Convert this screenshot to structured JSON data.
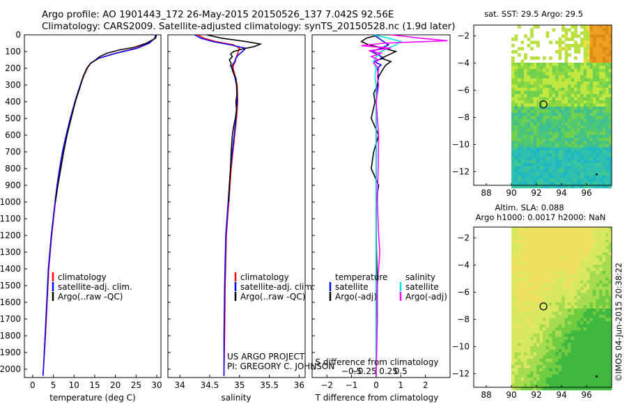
{
  "header": {
    "title_line1": "Argo profile: AO 1901443_172 26-May-2015 20150526_137 7.042S 92.56E",
    "title_line2": "Climatology: CARS2009. Satellite-adjusted climatology: synTS_20150528.nc (1.9d later)"
  },
  "colors": {
    "climatology": "#ff0000",
    "satellite": "#0000ff",
    "argo": "#000000",
    "satellite_sal": "#00e0e0",
    "argo_sal": "#ff00ff"
  },
  "chart_data": [
    {
      "id": "temperature",
      "type": "line",
      "xlabel": "temperature (deg C)",
      "xlim": [
        -2,
        31
      ],
      "xticks": [
        0,
        5,
        10,
        15,
        20,
        25,
        30
      ],
      "ylabel": "depth",
      "ylim": [
        0,
        2050
      ],
      "yticks": [
        0,
        100,
        200,
        300,
        400,
        500,
        600,
        700,
        800,
        900,
        1000,
        1100,
        1200,
        1300,
        1400,
        1500,
        1600,
        1700,
        1800,
        1900,
        2000
      ],
      "legend": [
        "climatology",
        "satellite-adj. clim.",
        "Argo(..raw -QC)"
      ],
      "series": [
        {
          "name": "climatology",
          "color": "#ff0000",
          "depth": [
            0,
            20,
            50,
            80,
            110,
            140,
            170,
            200,
            250,
            300,
            400,
            500,
            600,
            700,
            800,
            900,
            1000,
            1200,
            1400,
            1600,
            1800,
            2000,
            2040
          ],
          "values": [
            29.8,
            29.6,
            28,
            25,
            20,
            16,
            14,
            13.2,
            12.3,
            11.6,
            10.3,
            9.2,
            8.2,
            7.3,
            6.6,
            6,
            5.5,
            4.6,
            3.9,
            3.5,
            3.1,
            2.6,
            2.5
          ]
        },
        {
          "name": "satellite-adj. clim.",
          "color": "#0000ff",
          "depth": [
            0,
            20,
            50,
            80,
            110,
            140,
            170,
            200,
            250,
            300,
            400,
            500,
            600,
            700,
            800,
            900,
            1000,
            1200,
            1400,
            1600,
            1800,
            2000,
            2040
          ],
          "values": [
            29.7,
            29.5,
            28.2,
            25.3,
            20.2,
            16,
            14,
            13.1,
            12.2,
            11.5,
            10.2,
            9.1,
            8.1,
            7.2,
            6.5,
            5.9,
            5.4,
            4.5,
            3.8,
            3.4,
            3,
            2.6,
            2.5
          ]
        },
        {
          "name": "Argo(..raw -QC)",
          "color": "#000000",
          "depth": [
            0,
            20,
            50,
            75,
            90,
            110,
            130,
            150,
            170,
            200,
            250,
            300,
            400,
            500,
            600,
            700,
            800,
            900,
            1000
          ],
          "values": [
            29.9,
            29.7,
            27.5,
            24.5,
            21,
            18,
            16.2,
            15.2,
            14,
            13.1,
            12.2,
            11.6,
            10.3,
            9.3,
            8.3,
            7.5,
            6.8,
            6.1,
            5.5
          ]
        }
      ]
    },
    {
      "id": "salinity",
      "type": "line",
      "xlabel": "salinity",
      "xlim": [
        33.8,
        36.1
      ],
      "xticks": [
        34,
        34.5,
        35,
        35.5,
        36
      ],
      "xtick_labels": [
        "34",
        "34.5",
        "35",
        "35.5",
        "36"
      ],
      "ylim": [
        0,
        2050
      ],
      "legend": [
        "climatology",
        "satellite-adj. clim.",
        "Argo(..raw -QC)"
      ],
      "annotation_line1": "US ARGO PROJECT",
      "annotation_line2": "PI: GREGORY C. JOHNSON",
      "series": [
        {
          "name": "climatology",
          "color": "#ff0000",
          "depth": [
            0,
            20,
            40,
            60,
            80,
            100,
            120,
            140,
            160,
            180,
            200,
            250,
            300,
            400,
            500,
            600,
            800,
            1000,
            1200,
            1500,
            1800,
            2040
          ],
          "values": [
            34.3,
            34.4,
            34.6,
            34.9,
            35.0,
            34.98,
            34.96,
            34.94,
            34.93,
            34.9,
            34.89,
            34.93,
            34.96,
            34.97,
            34.95,
            34.92,
            34.86,
            34.82,
            34.78,
            34.76,
            34.75,
            34.74
          ]
        },
        {
          "name": "satellite-adj. clim.",
          "color": "#0000ff",
          "depth": [
            0,
            20,
            40,
            60,
            80,
            100,
            120,
            140,
            160,
            180,
            200,
            250,
            300,
            400,
            500,
            600,
            800,
            1000,
            1200,
            1500,
            1800,
            2040
          ],
          "values": [
            34.25,
            34.35,
            34.55,
            34.85,
            35.1,
            35.05,
            34.98,
            34.94,
            34.92,
            34.88,
            34.87,
            34.92,
            34.95,
            34.96,
            34.94,
            34.91,
            34.85,
            34.81,
            34.77,
            34.75,
            34.74,
            34.74
          ]
        },
        {
          "name": "Argo(..raw -QC)",
          "color": "#000000",
          "depth": [
            0,
            20,
            40,
            55,
            70,
            85,
            100,
            115,
            130,
            150,
            170,
            185,
            200,
            230,
            260,
            300,
            350,
            400,
            450,
            500,
            550,
            600,
            700,
            800,
            900,
            1000
          ],
          "values": [
            34.45,
            34.7,
            35.1,
            35.35,
            35.25,
            35.05,
            34.9,
            34.85,
            34.88,
            34.83,
            34.86,
            34.85,
            34.88,
            34.9,
            34.94,
            34.95,
            34.96,
            34.94,
            34.95,
            34.93,
            34.9,
            34.88,
            34.86,
            34.85,
            34.83,
            34.82
          ]
        }
      ]
    },
    {
      "id": "difference",
      "type": "line",
      "xlabel": "T difference from climatology",
      "x2label": "S difference from climatology",
      "xlim": [
        -2.6,
        3.0
      ],
      "xticks": [
        -2,
        -1,
        0,
        1,
        2
      ],
      "xtick_labels": [
        "−2",
        "−1",
        "0",
        "1",
        "2"
      ],
      "x2ticks": [
        -1.0,
        -0.5,
        0.5,
        1.0
      ],
      "x2tick_labels": [
        "−0.5",
        "−0.25",
        "0.25",
        "0.5"
      ],
      "ylim": [
        0,
        2050
      ],
      "legend_temperature_title": "temperature",
      "legend_salinity_title": "salinity",
      "legend": [
        "satellite",
        "Argo(-adj)",
        "satellite",
        "Argo(-adj)"
      ],
      "series": [
        {
          "name": "temperature satellite",
          "color": "#0000ff",
          "depth": [
            0,
            20,
            40,
            60,
            80,
            100,
            120,
            140,
            160,
            180,
            200,
            250,
            300,
            400,
            600,
            800,
            1000,
            1500,
            2040
          ],
          "values": [
            -0.1,
            0.1,
            0.3,
            0.5,
            0.2,
            -0.2,
            0.1,
            0.3,
            -0.1,
            0.2,
            0.05,
            0.1,
            0.05,
            0.0,
            0.0,
            0.0,
            0.0,
            0.0,
            0.0
          ]
        },
        {
          "name": "temperature Argo(-adj)",
          "color": "#000000",
          "depth": [
            0,
            20,
            40,
            60,
            80,
            100,
            120,
            140,
            160,
            180,
            200,
            250,
            300,
            350,
            400,
            500,
            600,
            700,
            800,
            900,
            1000,
            1200,
            1500,
            1700,
            2040
          ],
          "values": [
            0.1,
            -0.4,
            -0.6,
            -0.3,
            0.3,
            0.8,
            0.5,
            0.2,
            0.6,
            0.4,
            0.3,
            0.1,
            0.05,
            -0.1,
            -0.05,
            -0.2,
            0.1,
            -0.1,
            -0.2,
            0.1,
            0.0,
            0.0,
            0.05,
            0.0,
            0.0
          ]
        },
        {
          "name": "salinity satellite",
          "color": "#00e0e0",
          "depth": [
            0,
            20,
            40,
            60,
            80,
            100,
            130,
            160,
            200,
            250,
            300,
            400,
            600,
            800,
            1000,
            1500,
            2040
          ],
          "values": [
            -0.1,
            0.5,
            1.0,
            0.8,
            0.5,
            0.2,
            0.0,
            -0.1,
            0.0,
            -0.05,
            0.0,
            0.0,
            0.0,
            0.0,
            0.0,
            0.0,
            0.0
          ]
        },
        {
          "name": "salinity Argo(-adj)",
          "color": "#ff00ff",
          "depth": [
            0,
            20,
            35,
            50,
            65,
            80,
            95,
            110,
            130,
            150,
            170,
            200,
            250,
            300,
            400,
            500,
            600,
            800,
            1000,
            1200,
            1300,
            1500,
            1700,
            2040
          ],
          "values": [
            0.6,
            1.8,
            2.9,
            0.3,
            -0.6,
            0.6,
            -0.3,
            0.2,
            -0.2,
            0.1,
            -0.1,
            0.1,
            0.05,
            0.1,
            0.0,
            0.05,
            0.1,
            0.08,
            0.05,
            0.1,
            0.15,
            0.05,
            0.05,
            0.0
          ]
        }
      ]
    },
    {
      "id": "sst_map",
      "type": "heatmap",
      "title": "sat. SST: 29.5 Argo: 29.5",
      "xlim": [
        87,
        98
      ],
      "ylim": [
        -13,
        -1.2
      ],
      "xticks": [
        88,
        90,
        92,
        94,
        96
      ],
      "yticks": [
        -2,
        -4,
        -6,
        -8,
        -10,
        -12
      ],
      "ytick_labels": [
        "−2",
        "−4",
        "−6",
        "−8",
        "−10",
        "−12"
      ],
      "float_lon": 92.56,
      "float_lat": -7.042
    },
    {
      "id": "sla_map",
      "type": "heatmap",
      "title_line1": "Altim. SLA: 0.088",
      "title_line2": "Argo h1000: 0.0017 h2000: NaN",
      "xlim": [
        87,
        98
      ],
      "ylim": [
        -13,
        -1.2
      ],
      "xticks": [
        88,
        90,
        92,
        94,
        96
      ],
      "yticks": [
        -2,
        -4,
        -6,
        -8,
        -10,
        -12
      ],
      "ytick_labels": [
        "−2",
        "−4",
        "−6",
        "−8",
        "−10",
        "−12"
      ],
      "float_lon": 92.56,
      "float_lat": -7.042
    }
  ],
  "footer": {
    "credit": "©IMOS 04-Jun-2015 20:38:22"
  }
}
